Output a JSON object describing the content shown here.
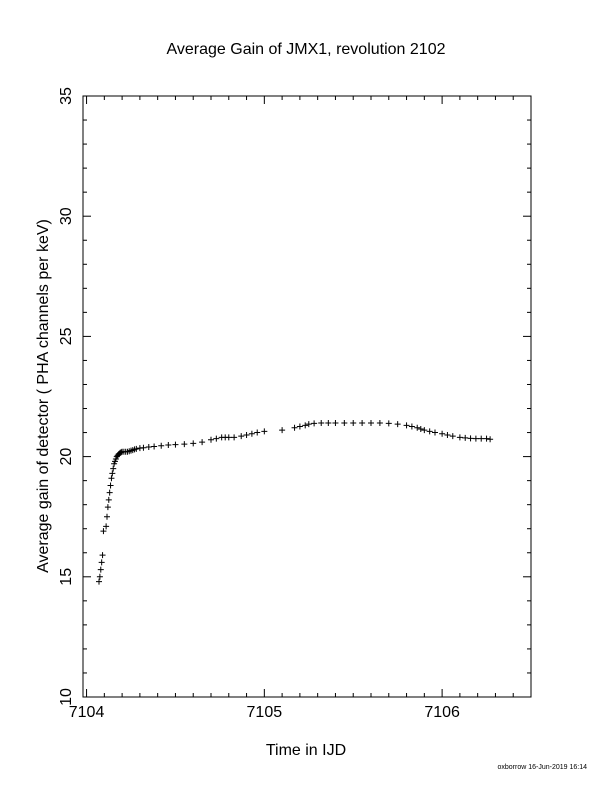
{
  "chart_data": {
    "type": "scatter",
    "title": "Average Gain of JMX1, revolution 2102",
    "xlabel": "Time in IJD",
    "ylabel": "Average gain of detector ( PHA channels per keV)",
    "xlim": [
      7103.98,
      7106.5
    ],
    "ylim": [
      10,
      35
    ],
    "xticks": [
      7104,
      7105,
      7106
    ],
    "yticks": [
      10,
      15,
      20,
      25,
      30,
      35
    ],
    "marker": "plus",
    "grid": false,
    "footer": "oxborrow 16-Jun-2019 16:14",
    "x": [
      7104.07,
      7104.075,
      7104.08,
      7104.085,
      7104.09,
      7104.095,
      7104.11,
      7104.115,
      7104.12,
      7104.125,
      7104.13,
      7104.135,
      7104.14,
      7104.145,
      7104.15,
      7104.155,
      7104.16,
      7104.165,
      7104.17,
      7104.175,
      7104.18,
      7104.185,
      7104.19,
      7104.195,
      7104.2,
      7104.21,
      7104.22,
      7104.23,
      7104.24,
      7104.25,
      7104.26,
      7104.27,
      7104.28,
      7104.3,
      7104.32,
      7104.35,
      7104.38,
      7104.42,
      7104.46,
      7104.5,
      7104.55,
      7104.6,
      7104.65,
      7104.7,
      7104.73,
      7104.76,
      7104.78,
      7104.8,
      7104.83,
      7104.87,
      7104.9,
      7104.93,
      7104.96,
      7105.0,
      7105.1,
      7105.17,
      7105.2,
      7105.23,
      7105.25,
      7105.28,
      7105.32,
      7105.36,
      7105.4,
      7105.45,
      7105.5,
      7105.55,
      7105.6,
      7105.65,
      7105.7,
      7105.75,
      7105.8,
      7105.83,
      7105.86,
      7105.88,
      7105.9,
      7105.93,
      7105.96,
      7106.0,
      7106.03,
      7106.06,
      7106.1,
      7106.13,
      7106.16,
      7106.19,
      7106.22,
      7106.25,
      7106.27
    ],
    "y": [
      14.8,
      15.0,
      15.3,
      15.6,
      15.9,
      16.9,
      17.1,
      17.5,
      17.9,
      18.2,
      18.5,
      18.8,
      19.1,
      19.3,
      19.5,
      19.7,
      19.8,
      19.9,
      20.0,
      20.05,
      20.1,
      20.13,
      20.16,
      20.18,
      20.2,
      20.2,
      20.2,
      20.2,
      20.22,
      20.25,
      20.27,
      20.3,
      20.32,
      20.35,
      20.37,
      20.4,
      20.42,
      20.45,
      20.48,
      20.5,
      20.52,
      20.55,
      20.6,
      20.7,
      20.75,
      20.8,
      20.8,
      20.8,
      20.8,
      20.85,
      20.9,
      20.95,
      21.0,
      21.05,
      21.1,
      21.2,
      21.25,
      21.3,
      21.35,
      21.38,
      21.4,
      21.4,
      21.4,
      21.4,
      21.4,
      21.4,
      21.4,
      21.4,
      21.38,
      21.35,
      21.3,
      21.25,
      21.2,
      21.15,
      21.1,
      21.05,
      21.0,
      20.95,
      20.9,
      20.85,
      20.8,
      20.78,
      20.76,
      20.75,
      20.75,
      20.75,
      20.72
    ]
  }
}
